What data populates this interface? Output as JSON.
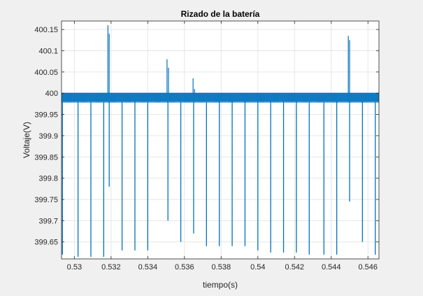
{
  "chart_data": {
    "type": "line",
    "title": "Rizado de la batería",
    "xlabel": "tiempo(s)",
    "ylabel": "Voltaje(V)",
    "xlim": [
      0.5293,
      0.5466
    ],
    "ylim": [
      399.61,
      400.17
    ],
    "x_ticks": [
      0.53,
      0.532,
      0.534,
      0.536,
      0.538,
      0.54,
      0.542,
      0.544,
      0.546
    ],
    "x_tick_labels": [
      "0.53",
      "0.532",
      "0.534",
      "0.536",
      "0.538",
      "0.54",
      "0.542",
      "0.544",
      "0.546"
    ],
    "y_ticks": [
      399.65,
      399.7,
      399.75,
      399.8,
      399.85,
      399.9,
      399.95,
      400,
      400.05,
      400.1,
      400.15
    ],
    "y_tick_labels": [
      "399.65",
      "399.7",
      "399.75",
      "399.8",
      "399.85",
      "399.9",
      "399.95",
      "400",
      "400.05",
      "400.1",
      "400.15"
    ],
    "grid": true,
    "line_color": "#0072bd",
    "baseline": {
      "top": 400.0,
      "bottom": 399.98
    },
    "ripple_period": 4e-05,
    "dips": [
      {
        "x": 0.52935,
        "y": 399.62
      },
      {
        "x": 0.5302,
        "y": 399.615
      },
      {
        "x": 0.5309,
        "y": 399.615
      },
      {
        "x": 0.5316,
        "y": 399.615
      },
      {
        "x": 0.5319,
        "y": 399.78
      },
      {
        "x": 0.5326,
        "y": 399.63
      },
      {
        "x": 0.5333,
        "y": 399.63
      },
      {
        "x": 0.534,
        "y": 399.63
      },
      {
        "x": 0.5351,
        "y": 399.7
      },
      {
        "x": 0.5358,
        "y": 399.65
      },
      {
        "x": 0.5365,
        "y": 399.67
      },
      {
        "x": 0.5372,
        "y": 399.64
      },
      {
        "x": 0.5379,
        "y": 399.64
      },
      {
        "x": 0.5386,
        "y": 399.64
      },
      {
        "x": 0.5393,
        "y": 399.64
      },
      {
        "x": 0.54,
        "y": 399.63
      },
      {
        "x": 0.5407,
        "y": 399.625
      },
      {
        "x": 0.5414,
        "y": 399.625
      },
      {
        "x": 0.5421,
        "y": 399.625
      },
      {
        "x": 0.5428,
        "y": 399.62
      },
      {
        "x": 0.5436,
        "y": 399.62
      },
      {
        "x": 0.5443,
        "y": 399.62
      },
      {
        "x": 0.545,
        "y": 399.745
      },
      {
        "x": 0.5457,
        "y": 399.65
      },
      {
        "x": 0.5464,
        "y": 399.62
      }
    ],
    "spikes": [
      {
        "x": 0.53183,
        "y": 400.16
      },
      {
        "x": 0.5319,
        "y": 400.14
      },
      {
        "x": 0.53505,
        "y": 400.08
      },
      {
        "x": 0.53513,
        "y": 400.06
      },
      {
        "x": 0.53647,
        "y": 400.035
      },
      {
        "x": 0.53655,
        "y": 400.01
      },
      {
        "x": 0.54493,
        "y": 400.135
      },
      {
        "x": 0.545,
        "y": 400.125
      }
    ]
  }
}
